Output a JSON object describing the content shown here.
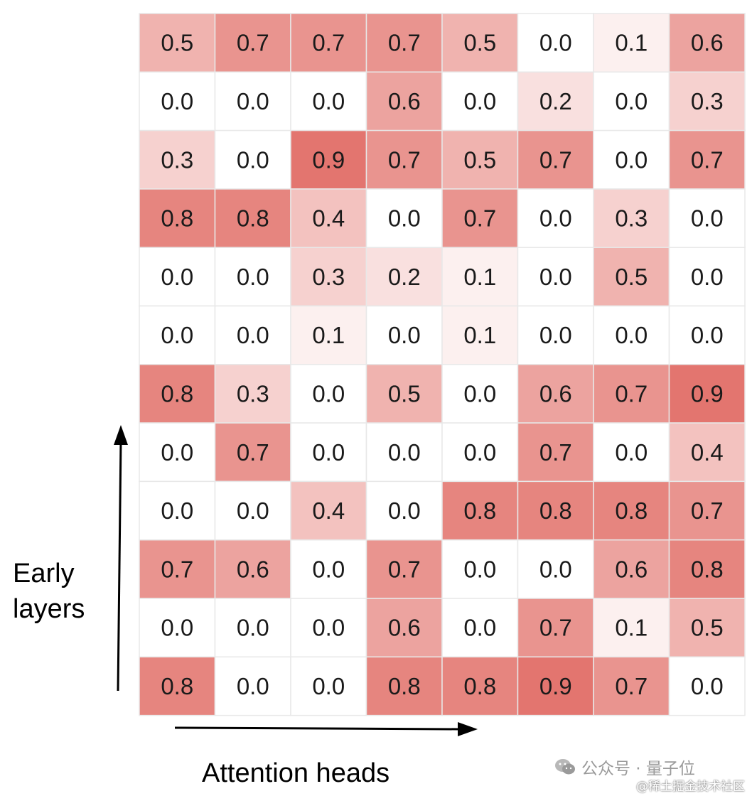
{
  "chart_data": {
    "type": "heatmap",
    "title": "",
    "xlabel": "Attention heads",
    "ylabel": "Early layers",
    "rows": 12,
    "cols": 8,
    "values": [
      [
        0.5,
        0.7,
        0.7,
        0.7,
        0.5,
        0.0,
        0.1,
        0.6
      ],
      [
        0.0,
        0.0,
        0.0,
        0.6,
        0.0,
        0.2,
        0.0,
        0.3
      ],
      [
        0.3,
        0.0,
        0.9,
        0.7,
        0.5,
        0.7,
        0.0,
        0.7
      ],
      [
        0.8,
        0.8,
        0.4,
        0.0,
        0.7,
        0.0,
        0.3,
        0.0
      ],
      [
        0.0,
        0.0,
        0.3,
        0.2,
        0.1,
        0.0,
        0.5,
        0.0
      ],
      [
        0.0,
        0.0,
        0.1,
        0.0,
        0.1,
        0.0,
        0.0,
        0.0
      ],
      [
        0.8,
        0.3,
        0.0,
        0.5,
        0.0,
        0.6,
        0.7,
        0.9
      ],
      [
        0.0,
        0.7,
        0.0,
        0.0,
        0.0,
        0.7,
        0.0,
        0.4
      ],
      [
        0.0,
        0.0,
        0.4,
        0.0,
        0.8,
        0.8,
        0.8,
        0.7
      ],
      [
        0.7,
        0.6,
        0.0,
        0.7,
        0.0,
        0.0,
        0.6,
        0.8
      ],
      [
        0.0,
        0.0,
        0.0,
        0.6,
        0.0,
        0.7,
        0.1,
        0.5
      ],
      [
        0.8,
        0.0,
        0.0,
        0.8,
        0.8,
        0.9,
        0.7,
        0.0
      ]
    ],
    "color_low": "#ffffff",
    "color_high": "#e0665f",
    "grid_color": "#e8e8e8",
    "value_range": [
      0,
      1
    ]
  },
  "labels": {
    "ylabel_line1": "Early",
    "ylabel_line2": "layers",
    "xlabel": "Attention heads"
  },
  "watermark": {
    "text": "公众号 · 量子位",
    "credit": "@稀土掘金技术社区",
    "icon": "wechat-icon"
  }
}
